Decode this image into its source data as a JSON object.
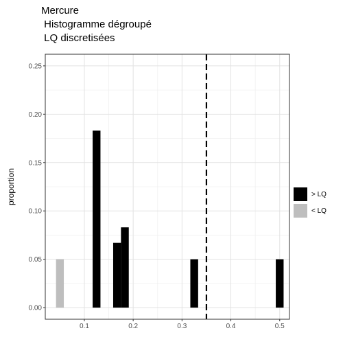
{
  "chart_data": {
    "type": "bar",
    "title_lines": [
      "Mercure",
      " Histogramme dégroupé",
      " LQ discretisées"
    ],
    "xlabel": "",
    "ylabel": "proportion",
    "xlim": [
      0.02,
      0.52
    ],
    "ylim": [
      -0.012,
      0.262
    ],
    "x_ticks": [
      0.1,
      0.2,
      0.3,
      0.4,
      0.5
    ],
    "x_tick_labels": [
      "0.1",
      "0.2",
      "0.3",
      "0.4",
      "0.5"
    ],
    "y_ticks": [
      0.0,
      0.05,
      0.1,
      0.15,
      0.2,
      0.25
    ],
    "y_tick_labels": [
      "0.00",
      "0.05",
      "0.10",
      "0.15",
      "0.20",
      "0.25"
    ],
    "bar_width": 0.016,
    "grid": true,
    "legend_position": "right",
    "series": [
      {
        "name": "> LQ",
        "color": "#000000",
        "x": [
          0.125,
          0.167,
          0.183,
          0.325,
          0.5
        ],
        "values": [
          0.183,
          0.067,
          0.083,
          0.05,
          0.05
        ]
      },
      {
        "name": "< LQ",
        "color": "#bebebe",
        "x": [
          0.05
        ],
        "values": [
          0.05
        ]
      }
    ],
    "reference_line": {
      "x": 0.35,
      "style": "dashed",
      "color": "#000000"
    }
  }
}
